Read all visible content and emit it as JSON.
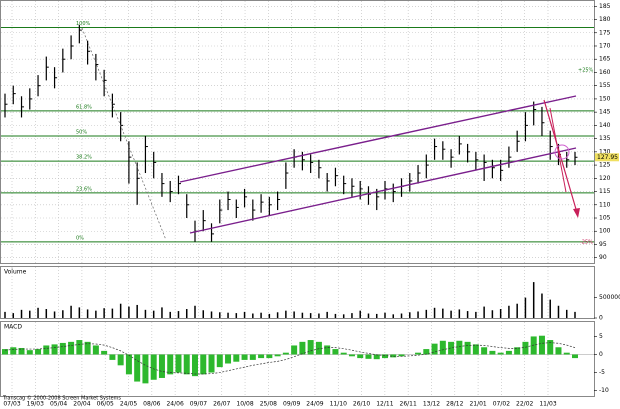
{
  "chart_data": [
    {
      "type": "ohlc",
      "name": "Price",
      "close": [
        148,
        152,
        147,
        150,
        155,
        162,
        158,
        165,
        170,
        176,
        168,
        163,
        157,
        148,
        140,
        128,
        120,
        132,
        126,
        118,
        115,
        118,
        110,
        100,
        104,
        99,
        108,
        112,
        109,
        113,
        108,
        111,
        110,
        112,
        122,
        128,
        127,
        126,
        124,
        119,
        121,
        118,
        117,
        116,
        114,
        113,
        116,
        115,
        117,
        119,
        122,
        125,
        132,
        131,
        128,
        133,
        130,
        127,
        126,
        124,
        123,
        128,
        134,
        140,
        146,
        141,
        132,
        129,
        127,
        127.95
      ],
      "high": [
        152,
        155,
        151,
        154,
        159,
        166,
        162,
        169,
        174,
        178,
        172,
        167,
        161,
        152,
        145,
        134,
        126,
        136,
        130,
        122,
        119,
        121,
        114,
        104,
        108,
        103,
        112,
        115,
        112,
        116,
        112,
        114,
        113,
        115,
        126,
        131,
        130,
        129,
        127,
        122,
        124,
        121,
        120,
        119,
        117,
        116,
        119,
        118,
        120,
        122,
        125,
        129,
        135,
        134,
        131,
        136,
        133,
        130,
        129,
        127,
        127,
        132,
        138,
        145,
        149,
        147,
        138,
        133,
        130,
        130
      ],
      "low": [
        143,
        148,
        143,
        146,
        151,
        157,
        154,
        160,
        165,
        171,
        163,
        157,
        151,
        143,
        134,
        118,
        110,
        122,
        120,
        113,
        111,
        114,
        105,
        96,
        100,
        96,
        103,
        108,
        105,
        109,
        104,
        107,
        106,
        108,
        116,
        124,
        123,
        122,
        120,
        115,
        117,
        114,
        113,
        112,
        110,
        108,
        112,
        111,
        113,
        115,
        118,
        120,
        127,
        127,
        124,
        129,
        126,
        123,
        119,
        120,
        119,
        124,
        130,
        134,
        140,
        136,
        127,
        125,
        124,
        125
      ],
      "color": "#000000",
      "ylim": [
        88,
        187
      ],
      "yticks": [
        90,
        95,
        100,
        105,
        110,
        115,
        120,
        125,
        130,
        135,
        140,
        145,
        150,
        155,
        160,
        165,
        170,
        175,
        180,
        185
      ],
      "levels": [
        {
          "label": "100%",
          "value": 177
        },
        {
          "label": "61.8%",
          "value": 145.5
        },
        {
          "label": "50%",
          "value": 136
        },
        {
          "label": "38.2%",
          "value": 126.5
        },
        {
          "label": "23.6%",
          "value": 114.5
        },
        {
          "label": "0%",
          "value": 96
        }
      ],
      "level_color": "#1a7a1a",
      "upper_band_label": "+25%",
      "lower_band_label": "-25%",
      "x_tick_labels": [
        "07/03",
        "19/03",
        "05/04",
        "20/04",
        "06/05",
        "24/05",
        "08/06",
        "24/06",
        "09/07",
        "26/07",
        "10/08",
        "25/08",
        "09/09",
        "24/09",
        "11/10",
        "26/10",
        "12/11",
        "26/11",
        "13/12",
        "28/12",
        "21/01",
        "07/02",
        "22/02",
        "11/03"
      ],
      "grid": true
    },
    {
      "type": "bar",
      "title": "Volume",
      "values": [
        150000,
        120000,
        200000,
        180000,
        250000,
        220000,
        160000,
        190000,
        300000,
        260000,
        210000,
        180000,
        240000,
        230000,
        350000,
        280000,
        320000,
        200000,
        180000,
        260000,
        150000,
        170000,
        220000,
        300000,
        190000,
        160000,
        140000,
        130000,
        120000,
        150000,
        110000,
        130000,
        100000,
        140000,
        180000,
        160000,
        130000,
        120000,
        110000,
        150000,
        100000,
        90000,
        120000,
        180000,
        110000,
        100000,
        130000,
        90000,
        110000,
        140000,
        160000,
        200000,
        250000,
        230000,
        180000,
        210000,
        170000,
        150000,
        280000,
        190000,
        220000,
        300000,
        350000,
        500000,
        880000,
        600000,
        450000,
        300000,
        200000,
        150000
      ],
      "color": "#000000",
      "ylim": [
        0,
        1250000
      ],
      "yticks": [
        0,
        500000
      ]
    },
    {
      "type": "bar",
      "title": "MACD",
      "values": [
        1.5,
        2,
        1.8,
        1.2,
        1.5,
        2.5,
        2.8,
        3.2,
        3.5,
        4,
        3.5,
        2.5,
        1,
        -1.5,
        -3,
        -5.5,
        -7.5,
        -8,
        -7,
        -6.5,
        -5.5,
        -5,
        -5.5,
        -6,
        -5.5,
        -5,
        -3.5,
        -2.5,
        -2,
        -1.5,
        -1.5,
        -1,
        -1,
        -0.5,
        0.5,
        2.5,
        3.5,
        4,
        3.5,
        2.5,
        1.5,
        0.5,
        -0.5,
        -1,
        -1.2,
        -1.3,
        -1,
        -0.8,
        -0.5,
        0,
        0.5,
        1.5,
        3,
        3.8,
        3.5,
        3.8,
        3.5,
        2.8,
        2,
        1,
        0.5,
        1,
        2,
        3.5,
        5,
        5.2,
        4,
        2,
        0.5,
        -1
      ],
      "signal": [
        1.2,
        1.4,
        1.5,
        1.5,
        1.5,
        1.7,
        1.9,
        2.2,
        2.5,
        2.8,
        3,
        2.9,
        2.6,
        1.9,
        1,
        -0.2,
        -1.7,
        -3,
        -4,
        -4.7,
        -5,
        -5.1,
        -5.2,
        -5.4,
        -5.4,
        -5.3,
        -5,
        -4.5,
        -4,
        -3.5,
        -3,
        -2.6,
        -2.2,
        -1.9,
        -1.4,
        -0.6,
        0.2,
        1,
        1.6,
        1.9,
        1.9,
        1.6,
        1.2,
        0.7,
        0.3,
        -0.1,
        -0.3,
        -0.5,
        -0.5,
        -0.4,
        -0.2,
        0.1,
        0.7,
        1.3,
        1.8,
        2.2,
        2.5,
        2.6,
        2.5,
        2.2,
        1.9,
        1.7,
        1.7,
        2,
        2.6,
        3.1,
        3.3,
        3.1,
        2.6,
        1.9
      ],
      "color": "#2db82d",
      "ylim": [
        -11.5,
        9
      ],
      "yticks": [
        -10,
        -5,
        0,
        5
      ]
    }
  ],
  "footer": "Transcag © 2000-2008 Screen Market Systems"
}
